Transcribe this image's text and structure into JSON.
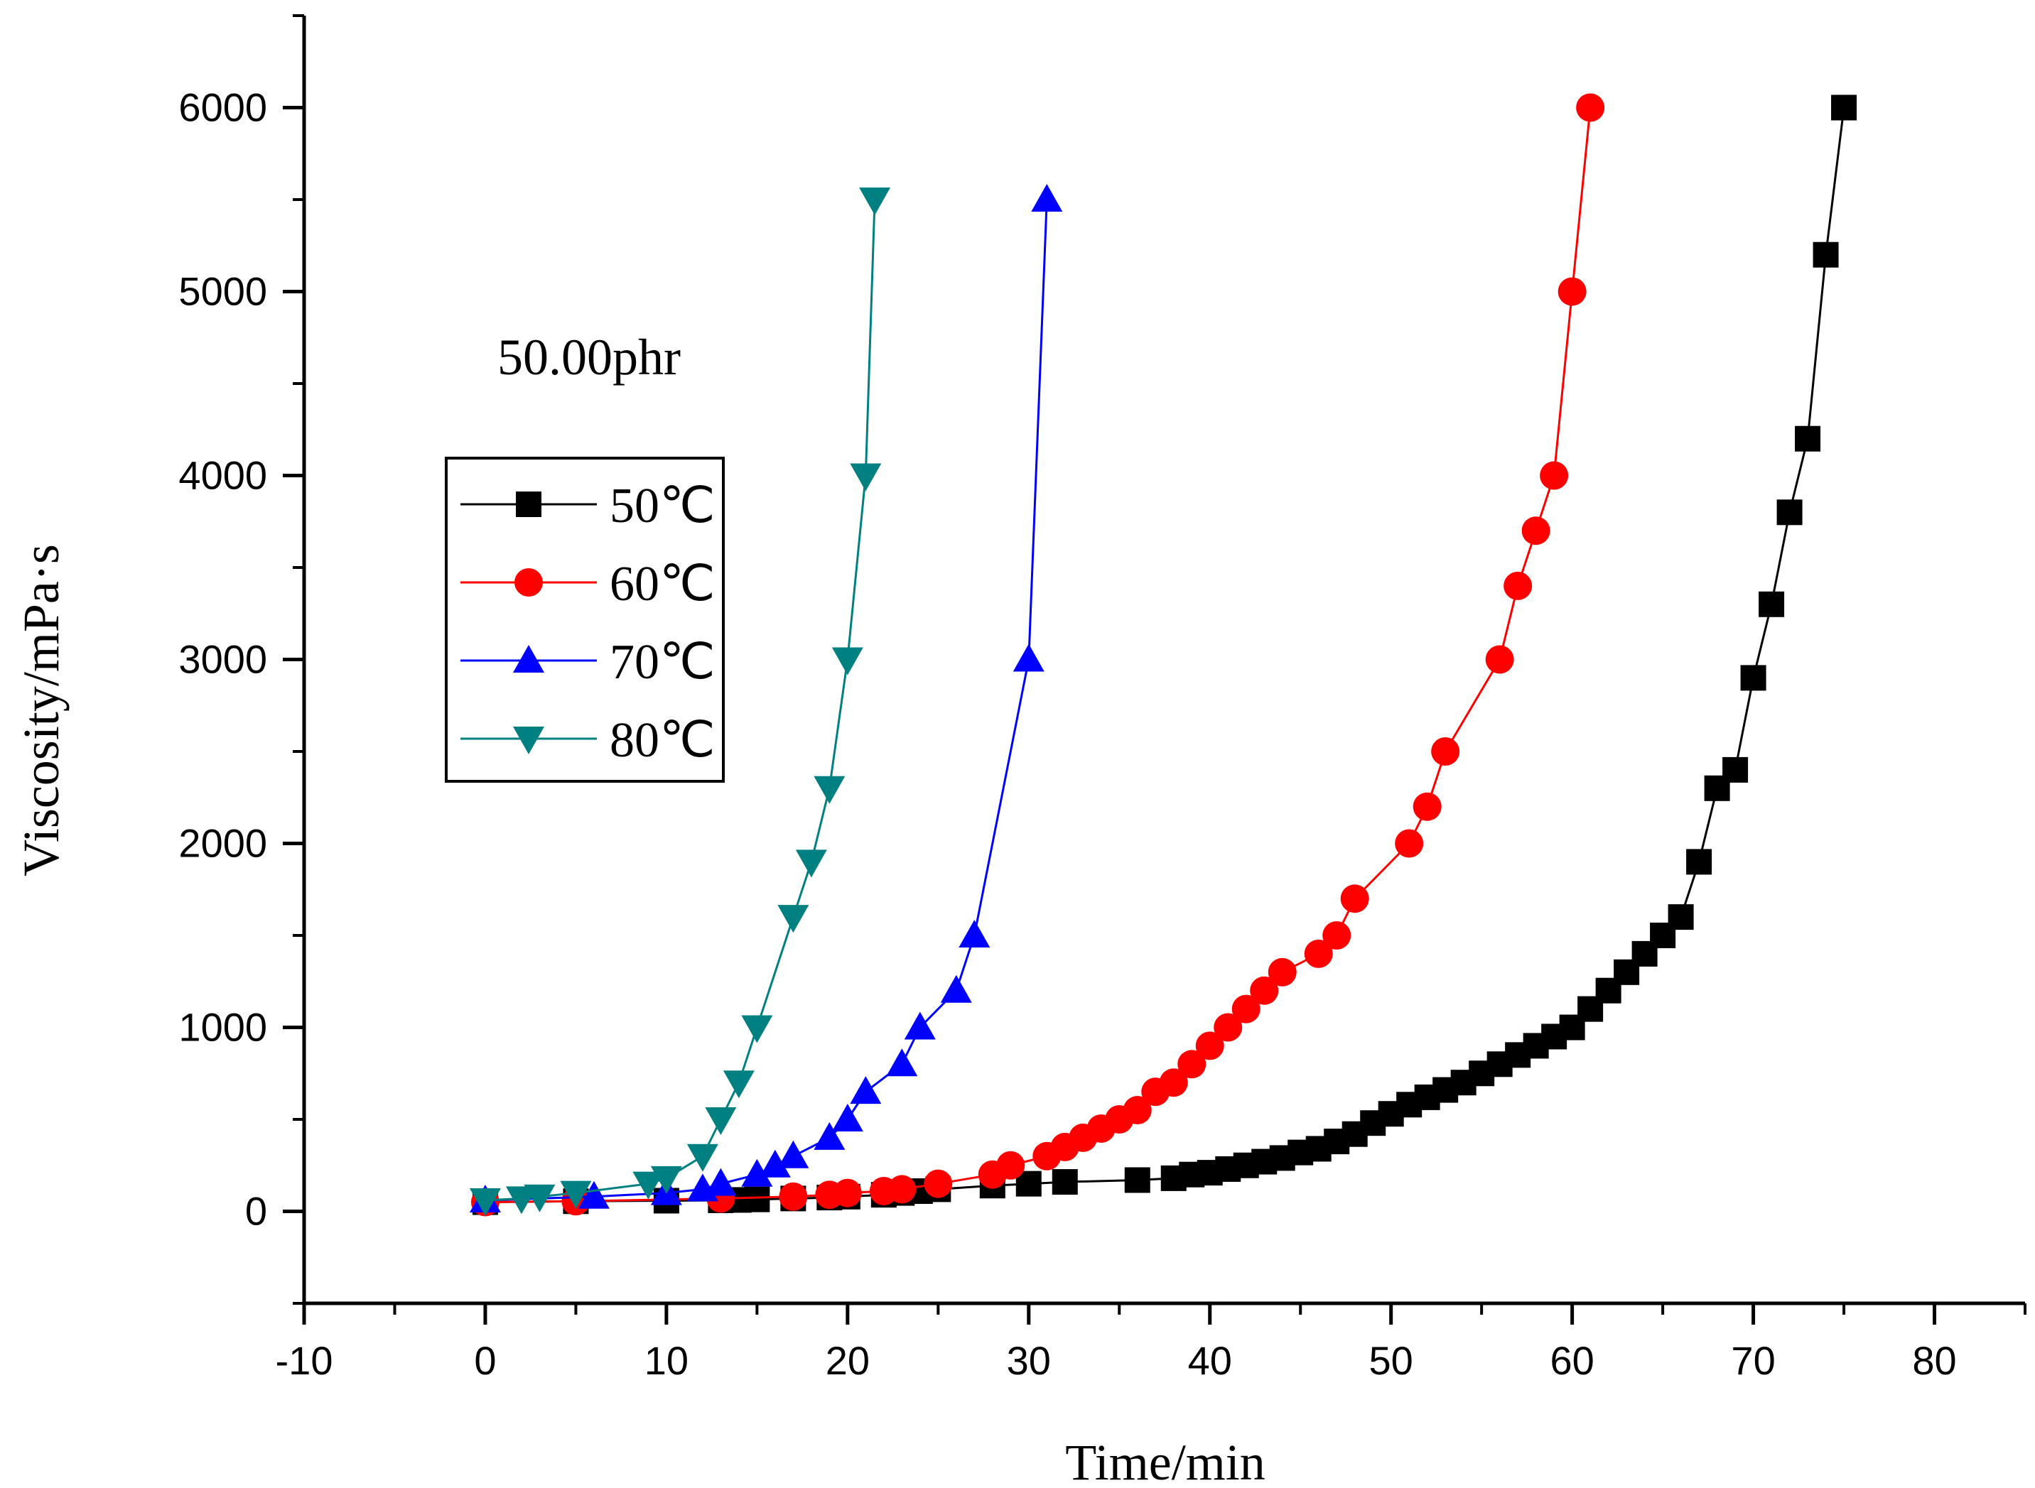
{
  "chart_data": {
    "type": "line",
    "title": "",
    "annotation": "50.00phr",
    "xlabel": "Time/min",
    "ylabel": "Viscosity/mPa·s",
    "xlim": [
      -10,
      85
    ],
    "ylim": [
      -500,
      6500
    ],
    "xticks": [
      -10,
      0,
      10,
      20,
      30,
      40,
      50,
      60,
      70,
      80
    ],
    "yticks": [
      0,
      1000,
      2000,
      3000,
      4000,
      5000,
      6000
    ],
    "legend_position": "upper-left",
    "series": [
      {
        "name": "50℃",
        "color": "#000000",
        "marker": "square",
        "x": [
          0,
          5,
          10,
          13,
          14,
          15,
          17,
          19,
          20,
          22,
          23,
          24,
          25,
          28,
          30,
          32,
          36,
          38,
          39,
          40,
          41,
          42,
          43,
          44,
          45,
          46,
          47,
          48,
          49,
          50,
          51,
          52,
          53,
          54,
          55,
          56,
          57,
          58,
          59,
          60,
          61,
          62,
          63,
          64,
          65,
          66,
          67,
          68,
          69,
          70,
          71,
          72,
          73,
          74,
          75
        ],
        "y": [
          50,
          55,
          58,
          60,
          62,
          65,
          70,
          75,
          80,
          90,
          100,
          110,
          120,
          140,
          150,
          160,
          170,
          180,
          200,
          210,
          230,
          250,
          270,
          290,
          320,
          340,
          380,
          420,
          480,
          530,
          580,
          620,
          660,
          700,
          750,
          800,
          850,
          900,
          950,
          1000,
          1100,
          1200,
          1300,
          1400,
          1500,
          1600,
          1900,
          2300,
          2400,
          2900,
          3300,
          3800,
          4200,
          5200,
          6000
        ]
      },
      {
        "name": "60℃",
        "color": "#ff0000",
        "marker": "circle",
        "x": [
          0,
          5,
          13,
          17,
          19,
          20,
          22,
          23,
          25,
          28,
          29,
          31,
          32,
          33,
          34,
          35,
          36,
          37,
          38,
          39,
          40,
          41,
          42,
          43,
          44,
          46,
          47,
          48,
          51,
          52,
          53,
          56,
          57,
          58,
          59,
          60,
          61
        ],
        "y": [
          50,
          55,
          70,
          80,
          90,
          100,
          110,
          120,
          150,
          200,
          250,
          300,
          350,
          400,
          450,
          500,
          550,
          650,
          700,
          800,
          900,
          1000,
          1100,
          1200,
          1300,
          1400,
          1500,
          1700,
          2000,
          2200,
          2500,
          3000,
          3400,
          3700,
          4000,
          5000,
          6000
        ]
      },
      {
        "name": "70℃",
        "color": "#0000ff",
        "marker": "triangle-up",
        "x": [
          0,
          6,
          10,
          12,
          13,
          15,
          16,
          17,
          19,
          20,
          21,
          23,
          24,
          26,
          27,
          30,
          31
        ],
        "y": [
          60,
          80,
          100,
          120,
          150,
          200,
          250,
          300,
          400,
          500,
          650,
          800,
          1000,
          1200,
          1500,
          3000,
          5500
        ]
      },
      {
        "name": "80℃",
        "color": "#008080",
        "marker": "triangle-down",
        "x": [
          0,
          2,
          3,
          5,
          9,
          10,
          12,
          13,
          14,
          15,
          17,
          18,
          19,
          20,
          21,
          21.5
        ],
        "y": [
          60,
          70,
          80,
          100,
          150,
          180,
          300,
          500,
          700,
          1000,
          1600,
          1900,
          2300,
          3000,
          4000,
          5500
        ]
      }
    ]
  }
}
